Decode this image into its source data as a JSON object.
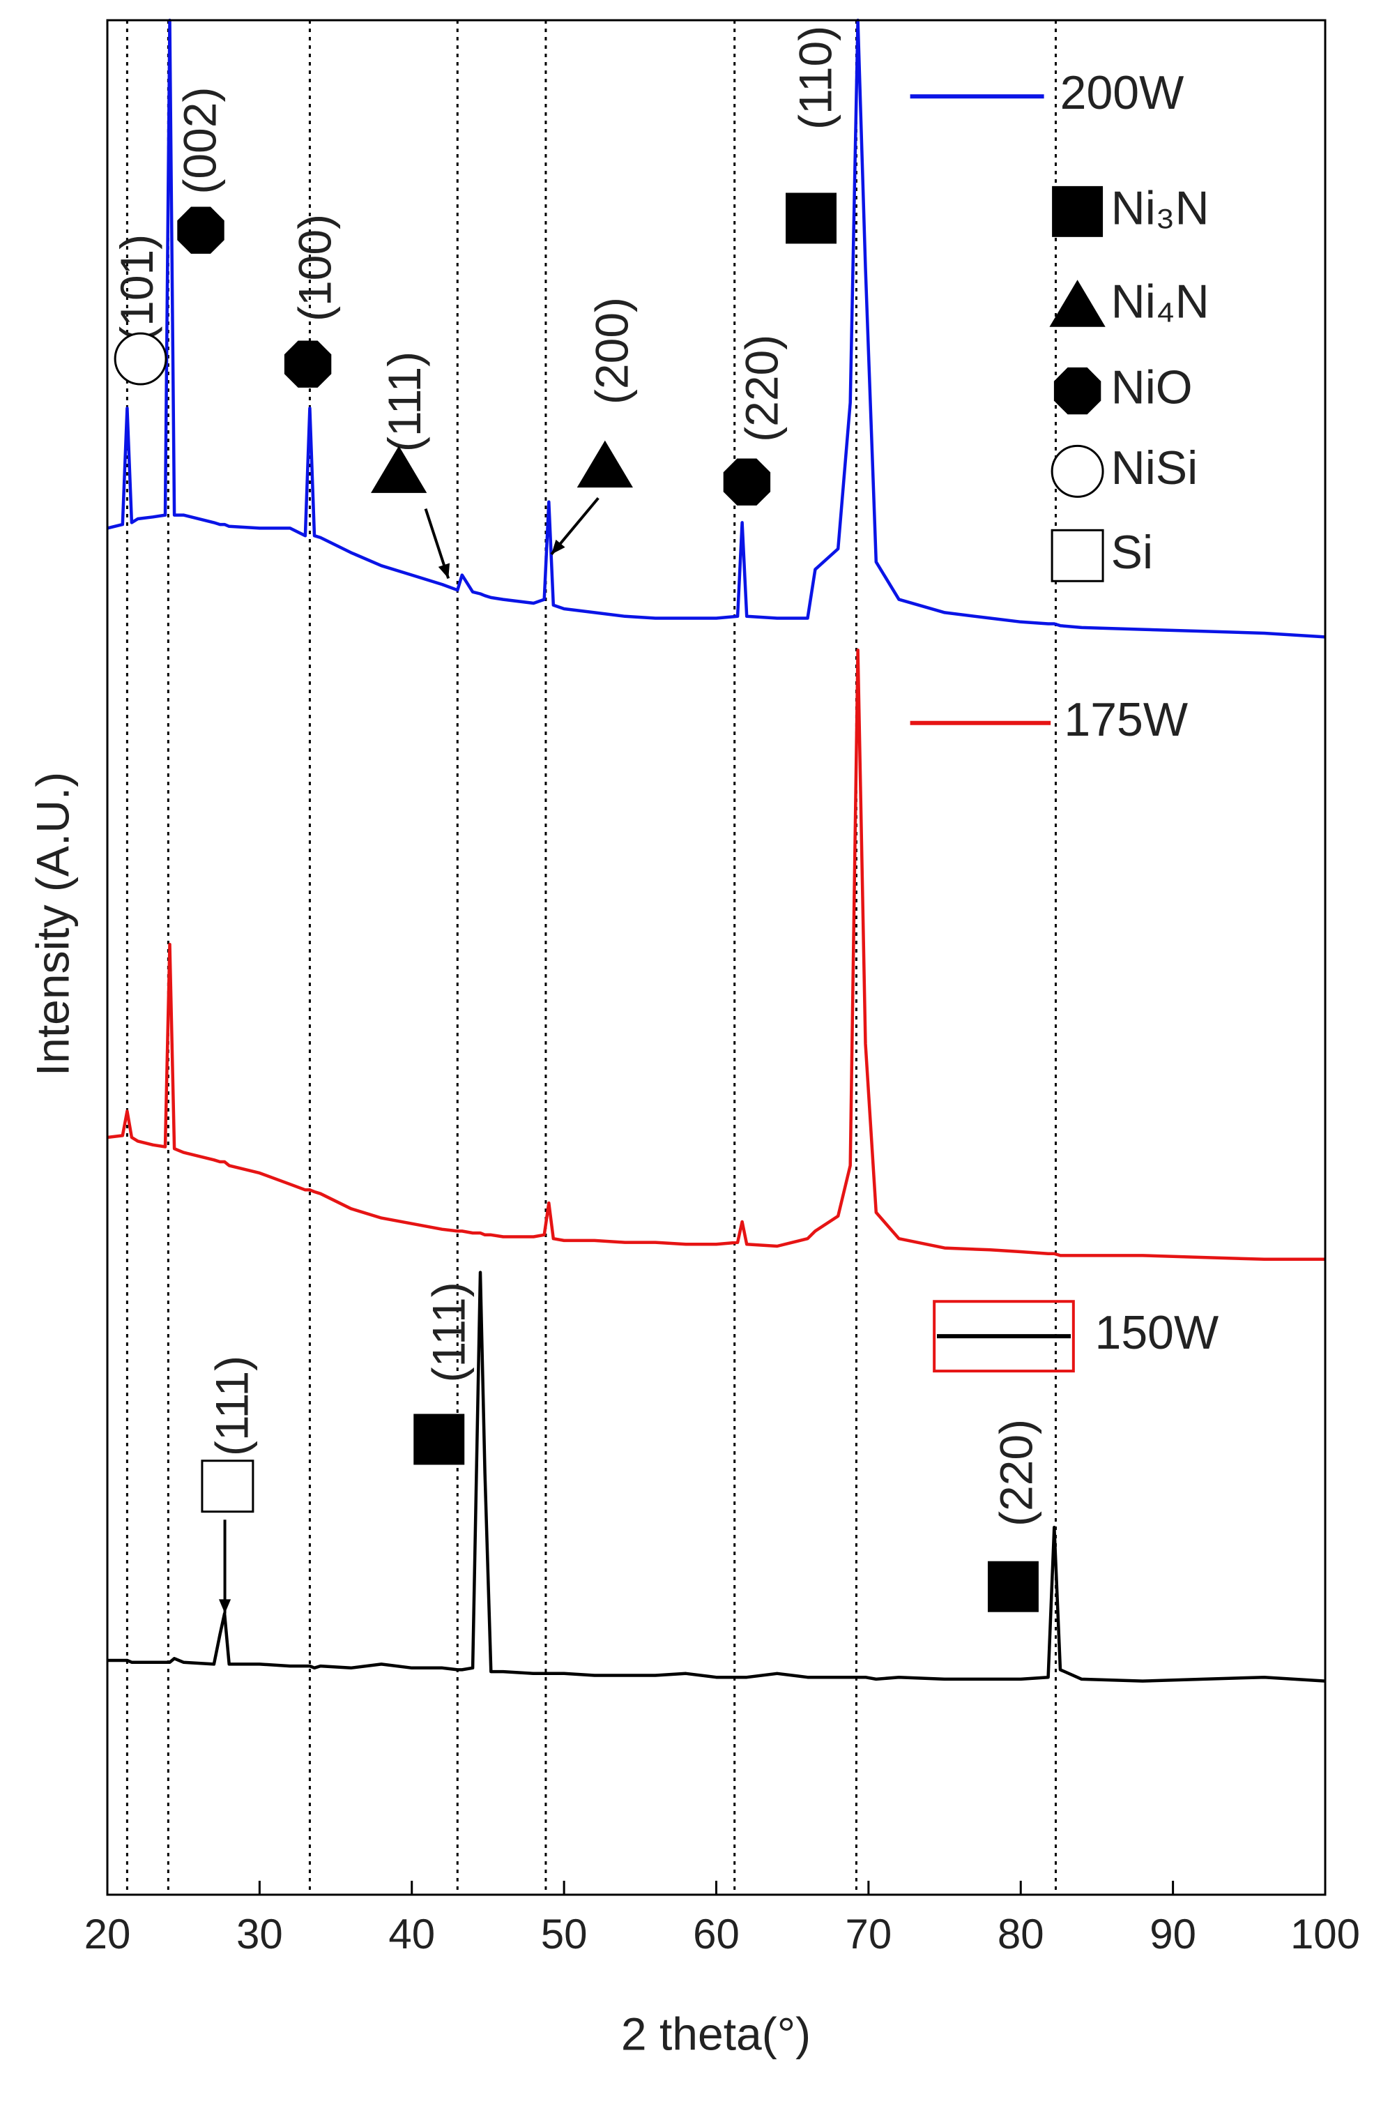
{
  "chart_data": {
    "type": "line",
    "x_label": "2 theta(°)",
    "y_label": "Intensity (A.U.)",
    "xlim": [
      20,
      100
    ],
    "xticks": [
      20,
      30,
      40,
      50,
      60,
      70,
      80,
      90,
      100
    ],
    "ylim": [
      0,
      100
    ],
    "reference_lines": [
      21.3,
      24,
      33.3,
      43,
      48.8,
      61.2,
      69.2,
      82.3
    ],
    "x": [
      20,
      21,
      21.3,
      21.6,
      22,
      23,
      23.8,
      24.1,
      24.4,
      25,
      27,
      27.4,
      27.7,
      28,
      30,
      32,
      33,
      33.3,
      33.6,
      34,
      36,
      38,
      40,
      42,
      43,
      43.3,
      44,
      44.5,
      44.8,
      45.2,
      46,
      48,
      48.7,
      49,
      49.3,
      50,
      52,
      54,
      56,
      58,
      60,
      61.4,
      61.7,
      62,
      64,
      66,
      66.5,
      68,
      68.8,
      69.3,
      69.8,
      70.5,
      72,
      75,
      78,
      80,
      81.8,
      82.2,
      82.6,
      84,
      88,
      92,
      96,
      100
    ],
    "series": [
      {
        "name": "200W",
        "color": "#0a14e6",
        "values": [
          72.9,
          73.1,
          79.3,
          73.2,
          73.4,
          73.5,
          73.6,
          100,
          73.6,
          73.6,
          73.2,
          73.1,
          73.1,
          73.0,
          72.9,
          72.9,
          72.5,
          79.3,
          72.5,
          72.4,
          71.6,
          70.9,
          70.4,
          69.9,
          69.6,
          70.4,
          69.5,
          69.4,
          69.3,
          69.2,
          69.1,
          68.9,
          69.1,
          74.3,
          68.8,
          68.6,
          68.4,
          68.2,
          68.1,
          68.1,
          68.1,
          68.2,
          73.2,
          68.2,
          68.1,
          68.1,
          70.7,
          71.8,
          79.6,
          100,
          86.8,
          71.1,
          69.1,
          68.4,
          68.1,
          67.9,
          67.8,
          67.8,
          67.7,
          67.6,
          67.5,
          67.4,
          67.3,
          67.1
        ]
      },
      {
        "name": "175W",
        "color": "#e61414",
        "values": [
          40.4,
          40.5,
          41.8,
          40.4,
          40.2,
          40.0,
          39.9,
          50.7,
          39.8,
          39.6,
          39.2,
          39.1,
          39.1,
          38.9,
          38.5,
          37.9,
          37.6,
          37.6,
          37.5,
          37.4,
          36.6,
          36.1,
          35.8,
          35.5,
          35.4,
          35.4,
          35.3,
          35.3,
          35.2,
          35.2,
          35.1,
          35.1,
          35.2,
          36.9,
          35.0,
          34.9,
          34.9,
          34.8,
          34.8,
          34.7,
          34.7,
          34.8,
          35.9,
          34.7,
          34.6,
          35.0,
          35.4,
          36.2,
          38.9,
          66.4,
          45.4,
          36.4,
          35.0,
          34.5,
          34.4,
          34.3,
          34.2,
          34.2,
          34.1,
          34.1,
          34.1,
          34.0,
          33.9,
          33.9
        ]
      },
      {
        "name": "150W",
        "color": "#000000",
        "values": [
          12.5,
          12.5,
          12.5,
          12.4,
          12.4,
          12.4,
          12.4,
          12.4,
          12.6,
          12.4,
          12.3,
          13.9,
          15.0,
          12.3,
          12.3,
          12.2,
          12.2,
          12.2,
          12.1,
          12.2,
          12.1,
          12.3,
          12.1,
          12.1,
          12.0,
          12.0,
          12.1,
          33.2,
          22.5,
          11.9,
          11.9,
          11.8,
          11.8,
          11.8,
          11.8,
          11.8,
          11.7,
          11.7,
          11.7,
          11.8,
          11.6,
          11.6,
          11.6,
          11.6,
          11.8,
          11.6,
          11.6,
          11.6,
          11.6,
          11.6,
          11.6,
          11.5,
          11.6,
          11.5,
          11.5,
          11.5,
          11.6,
          19.6,
          12.0,
          11.5,
          11.4,
          11.5,
          11.6,
          11.4
        ]
      }
    ],
    "phase_legend": [
      "Ni₃N",
      "Ni₄N",
      "NiO",
      "NiSi",
      "Si"
    ],
    "annotations": [
      "(101)",
      "(002)",
      "(100)",
      "(111)",
      "(200)",
      "(220)",
      "(110)",
      "(111)",
      "(111)",
      "(220)"
    ]
  }
}
